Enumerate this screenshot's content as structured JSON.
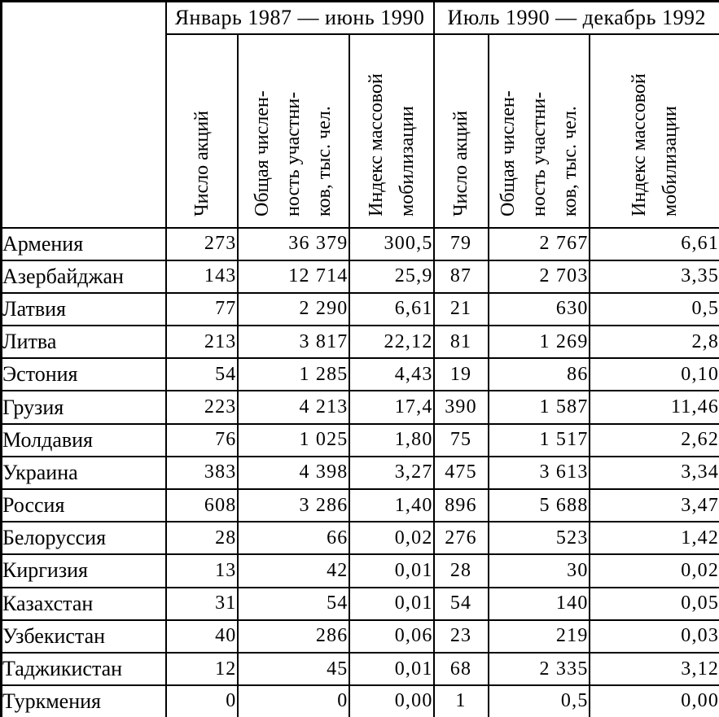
{
  "colors": {
    "background": "#ffffff",
    "border": "#000000",
    "text": "#000000"
  },
  "table": {
    "period_headers": [
      "Январь 1987 — июнь 1990",
      "Июль 1990 — декабрь 1992"
    ],
    "column_headers": [
      "Число акций",
      "Общая числен-\nность участни-\nков, тыс. чел.",
      "Индекс массовой\nмобилизации"
    ],
    "rows": [
      {
        "region": "Армения",
        "values": [
          "273",
          "36 379",
          "300,5",
          "79",
          "2 767",
          "6,61"
        ]
      },
      {
        "region": "Азербайджан",
        "values": [
          "143",
          "12 714",
          "25,9",
          "87",
          "2 703",
          "3,35"
        ]
      },
      {
        "region": "Латвия",
        "values": [
          "77",
          "2 290",
          "6,61",
          "21",
          "630",
          "0,5"
        ]
      },
      {
        "region": "Литва",
        "values": [
          "213",
          "3 817",
          "22,12",
          "81",
          "1 269",
          "2,8"
        ]
      },
      {
        "region": "Эстония",
        "values": [
          "54",
          "1 285",
          "4,43",
          "19",
          "86",
          "0,10"
        ]
      },
      {
        "region": "Грузия",
        "values": [
          "223",
          "4 213",
          "17,4",
          "390",
          "1 587",
          "11,46"
        ]
      },
      {
        "region": "Молдавия",
        "values": [
          "76",
          "1 025",
          "1,80",
          "75",
          "1 517",
          "2,62"
        ]
      },
      {
        "region": "Украина",
        "values": [
          "383",
          "4 398",
          "3,27",
          "475",
          "3 613",
          "3,34"
        ]
      },
      {
        "region": "Россия",
        "values": [
          "608",
          "3 286",
          "1,40",
          "896",
          "5 688",
          "3,47"
        ]
      },
      {
        "region": "Белоруссия",
        "values": [
          "28",
          "66",
          "0,02",
          "276",
          "523",
          "1,42"
        ]
      },
      {
        "region": "Киргизия",
        "values": [
          "13",
          "42",
          "0,01",
          "28",
          "30",
          "0,02"
        ]
      },
      {
        "region": "Казахстан",
        "values": [
          "31",
          "54",
          "0,01",
          "54",
          "140",
          "0,05"
        ]
      },
      {
        "region": "Узбекистан",
        "values": [
          "40",
          "286",
          "0,06",
          "23",
          "219",
          "0,03"
        ]
      },
      {
        "region": "Таджикистан",
        "values": [
          "12",
          "45",
          "0,01",
          "68",
          "2 335",
          "3,12"
        ]
      },
      {
        "region": "Туркмения",
        "values": [
          "0",
          "0",
          "0,00",
          "1",
          "0,5",
          "0,00"
        ]
      }
    ]
  }
}
